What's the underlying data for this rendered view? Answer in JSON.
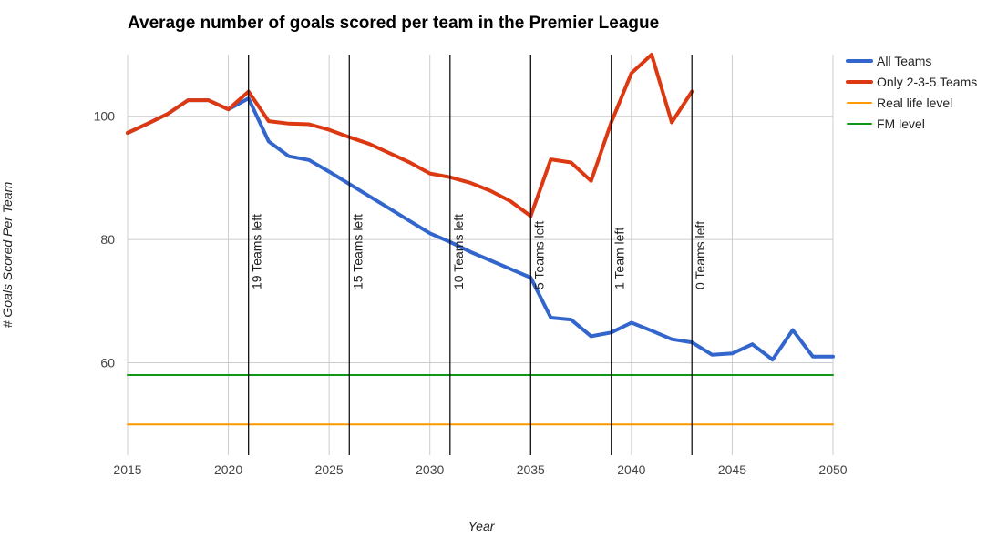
{
  "chart_data": {
    "type": "line",
    "title": "Average number of goals scored per team in the Premier League",
    "xlabel": "Year",
    "ylabel": "# Goals Scored Per Team",
    "xlim": [
      2015,
      2050
    ],
    "ylim": [
      45,
      110
    ],
    "x_ticks": [
      2015,
      2020,
      2025,
      2030,
      2035,
      2040,
      2045,
      2050
    ],
    "y_ticks": [
      60,
      80,
      100
    ],
    "grid": true,
    "legend_position": "right",
    "series": [
      {
        "name": "All Teams",
        "color": "#3366cc",
        "x": [
          2015,
          2016,
          2017,
          2018,
          2019,
          2020,
          2021,
          2022,
          2023,
          2024,
          2025,
          2026,
          2027,
          2028,
          2029,
          2030,
          2031,
          2032,
          2033,
          2034,
          2035,
          2036,
          2037,
          2038,
          2039,
          2040,
          2041,
          2042,
          2043,
          2044,
          2045,
          2046,
          2047,
          2048,
          2049,
          2050
        ],
        "values": [
          97.3,
          98.8,
          100.4,
          102.6,
          102.6,
          101.1,
          102.9,
          95.9,
          93.5,
          92.9,
          91.0,
          89.0,
          87.0,
          85.0,
          83.0,
          81.0,
          79.6,
          78.0,
          76.6,
          75.2,
          73.8,
          67.3,
          67.0,
          64.3,
          64.9,
          66.5,
          65.2,
          63.8,
          63.3,
          61.3,
          61.5,
          63.0,
          60.5,
          65.3,
          61.0,
          61.0
        ]
      },
      {
        "name": "Only 2-3-5 Teams",
        "color": "#dc3912",
        "x": [
          2015,
          2016,
          2017,
          2018,
          2019,
          2020,
          2021,
          2022,
          2023,
          2024,
          2025,
          2026,
          2027,
          2028,
          2029,
          2030,
          2031,
          2032,
          2033,
          2034,
          2035,
          2036,
          2037,
          2038,
          2039,
          2040,
          2041,
          2042,
          2043
        ],
        "values": [
          97.3,
          98.8,
          100.4,
          102.6,
          102.6,
          101.1,
          104.0,
          99.2,
          98.8,
          98.7,
          97.8,
          96.6,
          95.5,
          94.0,
          92.5,
          90.7,
          90.1,
          89.2,
          87.9,
          86.2,
          83.8,
          93.0,
          92.5,
          89.5,
          99.0,
          107.0,
          110.0,
          99.0,
          104.0
        ]
      },
      {
        "name": "Real life level",
        "color": "#ff9900",
        "x": [
          2015,
          2050
        ],
        "values": [
          50,
          50
        ]
      },
      {
        "name": "FM level",
        "color": "#109618",
        "x": [
          2015,
          2050
        ],
        "values": [
          58,
          58
        ]
      }
    ],
    "annotations": [
      {
        "x": 2021,
        "label": "19 Teams left"
      },
      {
        "x": 2026,
        "label": "15 Teams left"
      },
      {
        "x": 2031,
        "label": "10 Teams left"
      },
      {
        "x": 2035,
        "label": "5 Teams left"
      },
      {
        "x": 2039,
        "label": "1 Team left"
      },
      {
        "x": 2043,
        "label": "0 Teams left"
      }
    ]
  }
}
